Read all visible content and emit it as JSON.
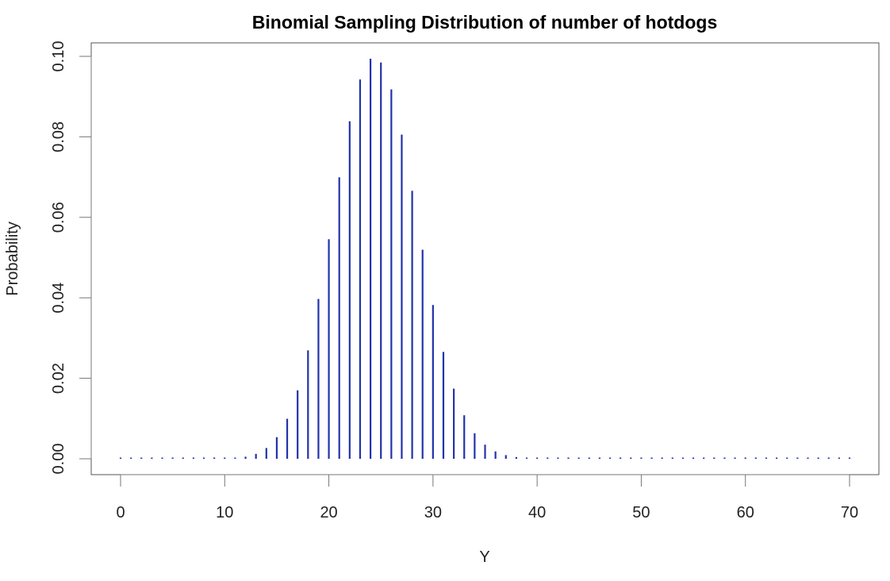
{
  "chart_data": {
    "type": "bar",
    "title": "Binomial Sampling Distribution of number of hotdogs",
    "xlabel": "Y",
    "ylabel": "Probability",
    "xlim": [
      0,
      70
    ],
    "ylim": [
      0,
      0.1
    ],
    "xticks": [
      "0",
      "10",
      "20",
      "30",
      "40",
      "50",
      "60",
      "70"
    ],
    "yticks": [
      "0.00",
      "0.02",
      "0.04",
      "0.06",
      "0.08",
      "0.10"
    ],
    "grid": false,
    "bar_color": "#2233aa",
    "x": [
      0,
      1,
      2,
      3,
      4,
      5,
      6,
      7,
      8,
      9,
      10,
      11,
      12,
      13,
      14,
      15,
      16,
      17,
      18,
      19,
      20,
      21,
      22,
      23,
      24,
      25,
      26,
      27,
      28,
      29,
      30,
      31,
      32,
      33,
      34,
      35,
      36,
      37,
      38,
      39,
      40,
      41,
      42,
      43,
      44,
      45,
      46,
      47,
      48,
      49,
      50,
      51,
      52,
      53,
      54,
      55,
      56,
      57,
      58,
      59,
      60,
      61,
      62,
      63,
      64,
      65,
      66,
      67,
      68,
      69,
      70
    ],
    "values": [
      0,
      0,
      0,
      0,
      0,
      0,
      0,
      0,
      5e-06,
      2e-05,
      6.5e-05,
      0.000192,
      0.000507,
      0.001219,
      0.002672,
      0.005371,
      0.009941,
      0.017,
      0.02696,
      0.03973,
      0.05455,
      0.06994,
      0.08388,
      0.09426,
      0.0994,
      0.09848,
      0.09178,
      0.08054,
      0.0666,
      0.05194,
      0.03822,
      0.02656,
      0.01743,
      0.01081,
      0.006333,
      0.003508,
      0.001836,
      0.000909,
      0.000425,
      0.000188,
      7.8e-05,
      3.1e-05,
      1.2e-05,
      0,
      0,
      0,
      0,
      0,
      0,
      0,
      0,
      0,
      0,
      0,
      0,
      0,
      0,
      0,
      0,
      0,
      0,
      0,
      0,
      0,
      0,
      0,
      0,
      0,
      0,
      0,
      0
    ]
  }
}
